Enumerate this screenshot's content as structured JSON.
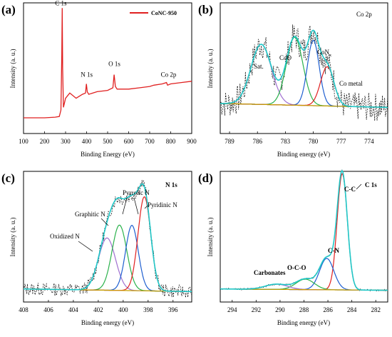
{
  "chart_data": [
    {
      "panel": "(a)",
      "type": "line",
      "xlabel": "Binding Energy (eV)",
      "ylabel": "Intensity (a. u.)",
      "xlim": [
        100,
        900
      ],
      "ylim": [
        0,
        1
      ],
      "xticks": [
        100,
        200,
        300,
        400,
        500,
        600,
        700,
        800,
        900
      ],
      "legend": "top-right",
      "series": [
        {
          "name": "CoNC-950",
          "color": "#e02020",
          "x": [
            100,
            150,
            200,
            250,
            270,
            278,
            282,
            284,
            286,
            290,
            300,
            320,
            350,
            380,
            395,
            399,
            403,
            410,
            450,
            500,
            525,
            531,
            537,
            545,
            600,
            650,
            700,
            720,
            760,
            780,
            785,
            800,
            850,
            900
          ],
          "y": [
            0.12,
            0.12,
            0.12,
            0.125,
            0.13,
            0.18,
            0.6,
            0.96,
            0.5,
            0.2,
            0.27,
            0.31,
            0.27,
            0.3,
            0.31,
            0.38,
            0.32,
            0.3,
            0.32,
            0.33,
            0.35,
            0.45,
            0.36,
            0.34,
            0.34,
            0.35,
            0.36,
            0.37,
            0.38,
            0.39,
            0.37,
            0.38,
            0.39,
            0.4
          ]
        }
      ],
      "annotations": [
        {
          "text": "C 1s",
          "x": 284,
          "y": 0.96
        },
        {
          "text": "N 1s",
          "x": 399,
          "y": 0.38
        },
        {
          "text": "O 1s",
          "x": 531,
          "y": 0.45
        },
        {
          "text": "Co 2p",
          "x": 780,
          "y": 0.39
        }
      ]
    },
    {
      "panel": "(b)",
      "type": "line",
      "title": "Co 2p",
      "xlabel": "Binding energy (eV)",
      "ylabel": "Intensity (a. u.)",
      "xlim": [
        790,
        772
      ],
      "ylim": [
        0,
        1
      ],
      "xticks": [
        789,
        786,
        783,
        780,
        777,
        774
      ],
      "series": [
        {
          "name": "raw",
          "color": "#000000",
          "style": "dashed"
        },
        {
          "name": "Sat.",
          "color": "#a070d0",
          "center": 785.6,
          "height": 0.46,
          "fwhm": 2.6
        },
        {
          "name": "CoO",
          "color": "#2bb24c",
          "center": 782.0,
          "height": 0.52,
          "fwhm": 2.1
        },
        {
          "name": "CoN<sub>x</sub>",
          "color": "#1f5fd0",
          "center": 780.0,
          "height": 0.5,
          "fwhm": 1.5
        },
        {
          "name": "Co metal",
          "color": "#e02020",
          "center": 778.5,
          "height": 0.3,
          "fwhm": 1.7
        },
        {
          "name": "background",
          "color": "#c8a000"
        },
        {
          "name": "envelope",
          "color": "#20c8c8"
        }
      ],
      "annotations": [
        "Sat.",
        "CoO",
        "CoN",
        "x",
        "Co metal"
      ]
    },
    {
      "panel": "(c)",
      "type": "line",
      "title": "N 1s",
      "xlabel": "Binding energy (eV)",
      "ylabel": "Intensity (a. u.)",
      "xlim": [
        408,
        394.5
      ],
      "ylim": [
        0,
        1
      ],
      "xticks": [
        408,
        406,
        404,
        402,
        400,
        398,
        396
      ],
      "series": [
        {
          "name": "raw",
          "color": "#000000",
          "style": "dashed"
        },
        {
          "name": "Oxidized N",
          "color": "#a070d0",
          "center": 401.3,
          "height": 0.4,
          "fwhm": 1.6
        },
        {
          "name": "Graphitic N",
          "color": "#2bb24c",
          "center": 400.3,
          "height": 0.5,
          "fwhm": 1.4
        },
        {
          "name": "Pyrrolic N",
          "color": "#1f5fd0",
          "center": 399.3,
          "height": 0.5,
          "fwhm": 1.2
        },
        {
          "name": "Pyridinic N",
          "color": "#e02020",
          "center": 398.3,
          "height": 0.72,
          "fwhm": 1.2
        },
        {
          "name": "background",
          "color": "#c8a000"
        },
        {
          "name": "envelope",
          "color": "#20c8c8"
        }
      ],
      "annotations": [
        "Pyrrolic N",
        "Graphitic N",
        "Pyridinic N",
        "Oxidized N"
      ]
    },
    {
      "panel": "(d)",
      "type": "line",
      "title": "C 1s",
      "xlabel": "Binding energy (eV)",
      "ylabel": "Intensity (a. u.)",
      "xlim": [
        295,
        281
      ],
      "ylim": [
        0,
        1
      ],
      "xticks": [
        294,
        292,
        290,
        288,
        286,
        284,
        282
      ],
      "series": [
        {
          "name": "raw",
          "color": "#000000",
          "style": "dotted"
        },
        {
          "name": "C-C",
          "color": "#e02020",
          "center": 284.8,
          "height": 0.89,
          "fwhm": 1.0
        },
        {
          "name": "C-N",
          "color": "#1f5fd0",
          "center": 286.1,
          "height": 0.24,
          "fwhm": 1.4
        },
        {
          "name": "O-C-O",
          "color": "#2bb24c",
          "center": 287.9,
          "height": 0.08,
          "fwhm": 1.8
        },
        {
          "name": "Carbonates",
          "color": "#a070d0",
          "center": 290.3,
          "height": 0.04,
          "fwhm": 2.2
        },
        {
          "name": "background",
          "color": "#c8a000"
        },
        {
          "name": "envelope",
          "color": "#20c8c8"
        }
      ],
      "annotations": [
        "C-C",
        "C-N",
        "O-C-O",
        "Carbonates"
      ]
    }
  ]
}
